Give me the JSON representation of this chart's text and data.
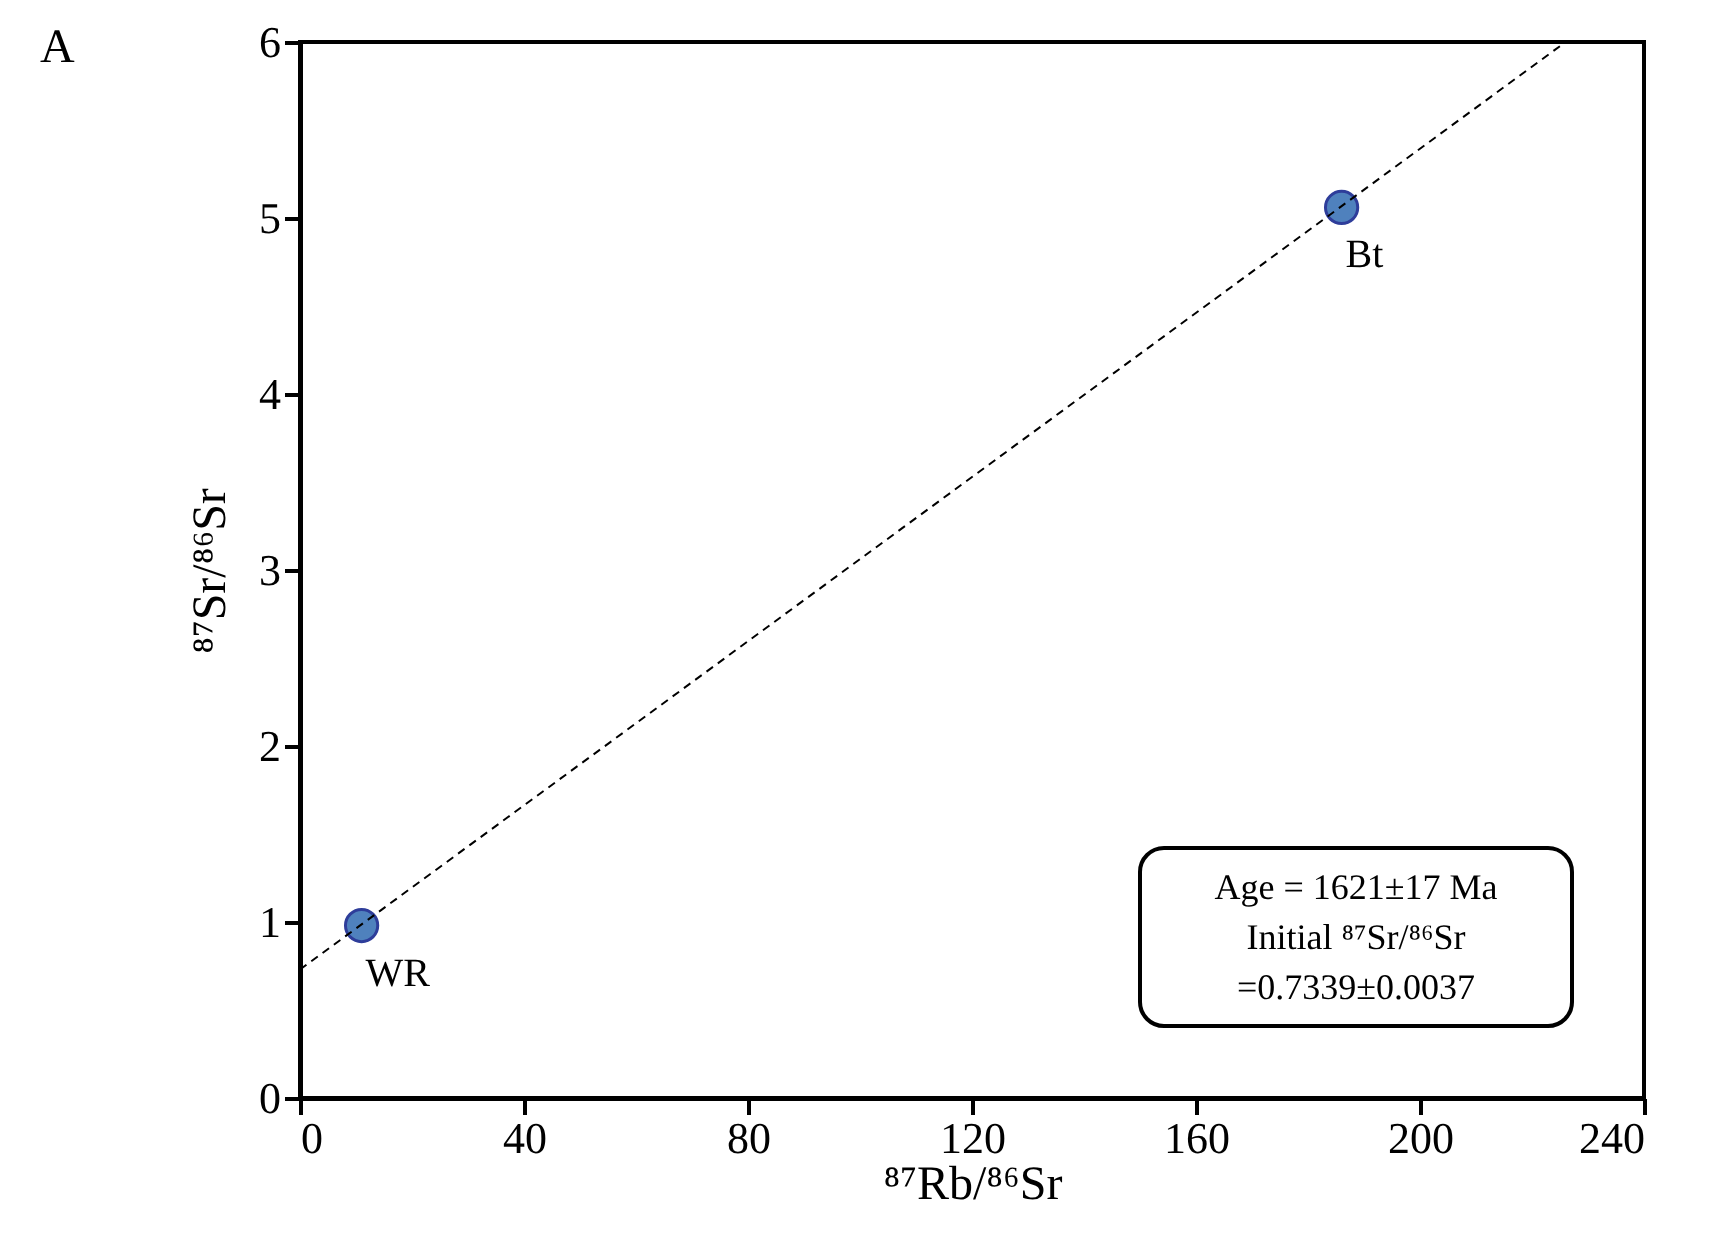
{
  "chart_data": {
    "type": "scatter",
    "title": "A",
    "xlabel": "⁸⁷Rb/⁸⁶Sr",
    "ylabel": "⁸⁷Sr/⁸⁶Sr",
    "xlim": [
      0,
      240
    ],
    "xticks": [
      0,
      40,
      80,
      120,
      160,
      200,
      240
    ],
    "ylim": [
      0,
      6
    ],
    "yticks": [
      0,
      1,
      2,
      3,
      4,
      5,
      6
    ],
    "grid": false,
    "marker": "circle",
    "series": [
      {
        "color": "#4f81bd",
        "x": [
          11,
          186
        ],
        "values": [
          0.98,
          5.06
        ]
      },
      {
        "type": "line",
        "color": "#000000",
        "line_style": "dashed",
        "marker": "none",
        "x": [
          0,
          226
        ],
        "values": [
          0.73,
          6
        ]
      }
    ],
    "annotations": [
      {
        "text": "WR",
        "x": 11,
        "y": 0.98
      },
      {
        "text": "Bt",
        "x": 186,
        "y": 5.06
      },
      "Age = 1621±17 Ma",
      "Initial ⁸⁷Sr/⁸⁶Sr",
      "=0.7339±0.0037"
    ]
  }
}
